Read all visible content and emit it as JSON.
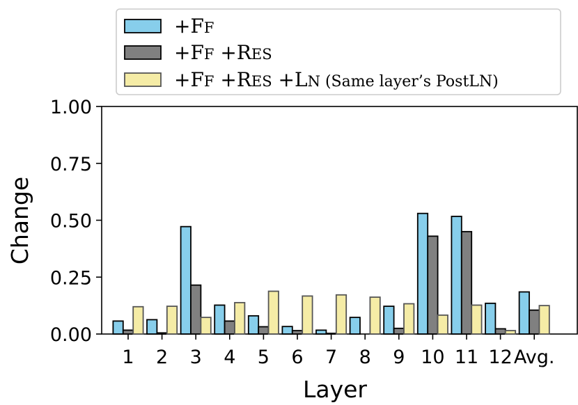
{
  "chart_data": {
    "type": "bar",
    "xlabel": "Layer",
    "ylabel": "Change",
    "ylim": [
      0,
      1
    ],
    "yticks": [
      "0.00",
      "0.25",
      "0.50",
      "0.75",
      "1.00"
    ],
    "ytick_values": [
      0,
      0.25,
      0.5,
      0.75,
      1.0
    ],
    "categories": [
      "1",
      "2",
      "3",
      "4",
      "5",
      "6",
      "7",
      "8",
      "9",
      "10",
      "11",
      "12",
      "Avg."
    ],
    "legend_position": "top",
    "series": [
      {
        "name": "+FF",
        "legend_parts": [
          [
            "+F",
            "big"
          ],
          [
            "F",
            "small"
          ]
        ],
        "color": "#87ceeb",
        "values": [
          0.057,
          0.063,
          0.472,
          0.127,
          0.08,
          0.033,
          0.017,
          0.073,
          0.122,
          0.53,
          0.517,
          0.135,
          0.185
        ]
      },
      {
        "name": "+FF+RES",
        "legend_parts": [
          [
            "+F",
            "big"
          ],
          [
            "F",
            "small"
          ],
          [
            " +R",
            "big"
          ],
          [
            "ES",
            "small"
          ]
        ],
        "color": "#808080",
        "values": [
          0.017,
          0.005,
          0.215,
          0.057,
          0.032,
          0.015,
          0.003,
          0.0,
          0.025,
          0.43,
          0.45,
          0.023,
          0.105
        ]
      },
      {
        "name": "+FF+RES+LN (Same layer's PostLN)",
        "legend_parts": [
          [
            "+F",
            "big"
          ],
          [
            "F",
            "small"
          ],
          [
            " +R",
            "big"
          ],
          [
            "ES",
            "small"
          ],
          [
            " +L",
            "big"
          ],
          [
            "N",
            "small"
          ],
          [
            " (Same layer’s PostLN)",
            "note"
          ]
        ],
        "color": "#f5eca6",
        "values": [
          0.12,
          0.122,
          0.073,
          0.138,
          0.188,
          0.167,
          0.172,
          0.162,
          0.133,
          0.083,
          0.127,
          0.015,
          0.125
        ]
      }
    ]
  }
}
